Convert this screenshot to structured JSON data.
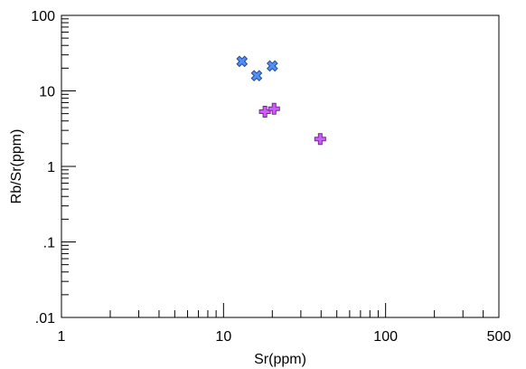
{
  "chart_data": {
    "type": "scatter",
    "title": "",
    "xlabel": "Sr(ppm)",
    "ylabel": "Rb/Sr(ppm)",
    "x_scale": "log",
    "y_scale": "log",
    "xlim": [
      1,
      500
    ],
    "ylim": [
      0.01,
      100
    ],
    "x_ticks": [
      {
        "value": 1,
        "label": "1"
      },
      {
        "value": 10,
        "label": "10"
      },
      {
        "value": 100,
        "label": "100"
      },
      {
        "value": 500,
        "label": "500"
      }
    ],
    "y_ticks": [
      {
        "value": 0.01,
        "label": ".01"
      },
      {
        "value": 0.1,
        "label": ".1"
      },
      {
        "value": 1,
        "label": "1"
      },
      {
        "value": 10,
        "label": "10"
      },
      {
        "value": 100,
        "label": "100"
      }
    ],
    "grid": false,
    "legend": "none",
    "series": [
      {
        "marker": "x",
        "fill": "#4f8ff7",
        "stroke": "#2a4c8c",
        "points": [
          {
            "x": 13,
            "y": 24.6
          },
          {
            "x": 16,
            "y": 15.9
          },
          {
            "x": 20,
            "y": 21.4
          }
        ]
      },
      {
        "marker": "plus",
        "fill": "#d25bff",
        "stroke": "#6b2e86",
        "points": [
          {
            "x": 18,
            "y": 5.3
          },
          {
            "x": 20.5,
            "y": 5.8
          },
          {
            "x": 39.5,
            "y": 2.3
          }
        ]
      }
    ]
  }
}
